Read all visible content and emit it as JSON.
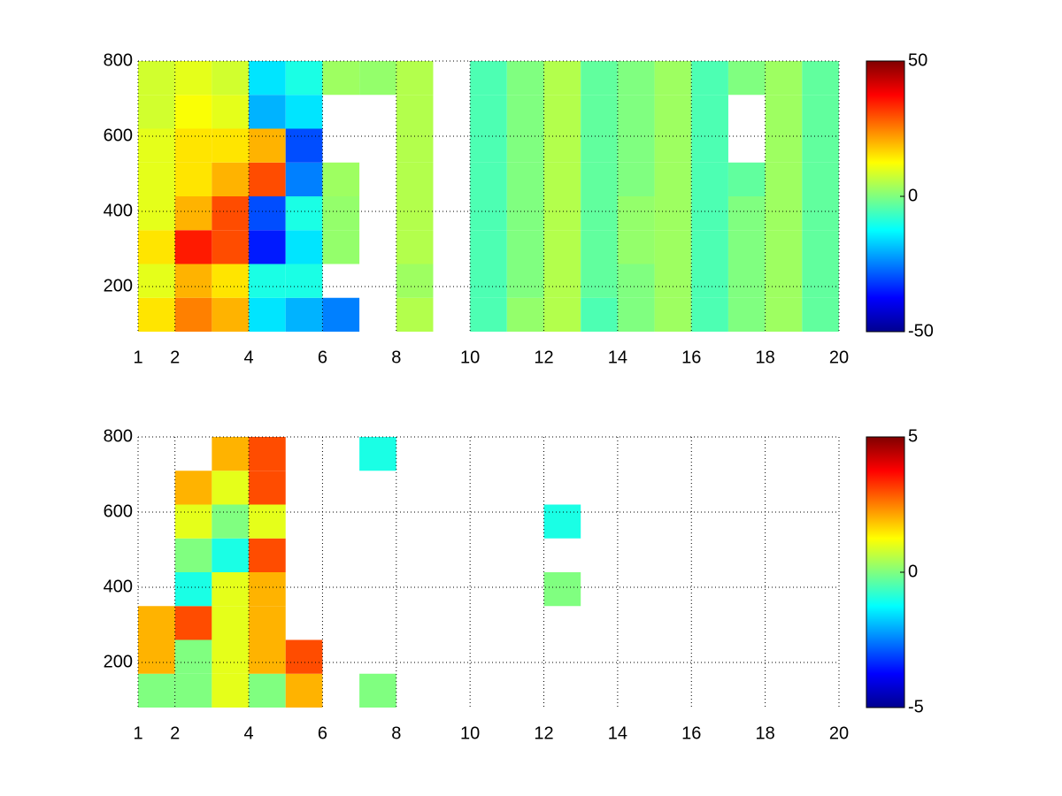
{
  "chart_data": [
    {
      "type": "heatmap",
      "colormap": "jet",
      "grid": true,
      "xlim": [
        1,
        20
      ],
      "ylim": [
        80,
        800
      ],
      "xticks": [
        1,
        2,
        4,
        6,
        8,
        10,
        12,
        14,
        16,
        18,
        20
      ],
      "yticks": [
        200,
        400,
        600,
        800
      ],
      "clim": [
        -50,
        50
      ],
      "cticks": [
        -50,
        0,
        50
      ],
      "xedges": [
        1,
        2,
        3,
        4,
        5,
        6,
        7,
        8,
        9,
        10,
        11,
        12,
        13,
        14,
        15,
        16,
        17,
        18,
        19,
        20
      ],
      "yedges": [
        80,
        170,
        260,
        350,
        440,
        530,
        620,
        710,
        800
      ],
      "values": [
        [
          15,
          25,
          20,
          -15,
          -20,
          -25,
          null,
          5,
          null,
          -5,
          2,
          5,
          -5,
          0,
          3,
          -5,
          0,
          3,
          -3
        ],
        [
          10,
          20,
          15,
          -10,
          -10,
          null,
          null,
          3,
          null,
          -5,
          0,
          5,
          -3,
          0,
          3,
          -5,
          0,
          3,
          -3
        ],
        [
          15,
          35,
          30,
          -35,
          -15,
          2,
          null,
          5,
          null,
          -5,
          0,
          5,
          -3,
          2,
          3,
          -5,
          0,
          3,
          -3
        ],
        [
          10,
          20,
          30,
          -30,
          -10,
          2,
          null,
          5,
          null,
          -5,
          0,
          5,
          -3,
          2,
          3,
          -5,
          0,
          3,
          -3
        ],
        [
          10,
          15,
          20,
          30,
          -25,
          3,
          null,
          5,
          null,
          -5,
          0,
          5,
          -3,
          0,
          3,
          -5,
          -3,
          3,
          -3
        ],
        [
          10,
          15,
          15,
          20,
          -30,
          null,
          null,
          5,
          null,
          -5,
          0,
          5,
          -3,
          0,
          3,
          -5,
          null,
          3,
          -3
        ],
        [
          8,
          12,
          10,
          -20,
          -15,
          null,
          null,
          5,
          null,
          -5,
          0,
          5,
          -3,
          0,
          3,
          -5,
          null,
          3,
          -3
        ],
        [
          8,
          10,
          8,
          -15,
          -10,
          3,
          2,
          5,
          null,
          -5,
          0,
          5,
          -3,
          0,
          3,
          -5,
          0,
          3,
          -3
        ]
      ]
    },
    {
      "type": "heatmap",
      "colormap": "jet",
      "grid": true,
      "xlim": [
        1,
        20
      ],
      "ylim": [
        80,
        800
      ],
      "xticks": [
        1,
        2,
        4,
        6,
        8,
        10,
        12,
        14,
        16,
        18,
        20
      ],
      "yticks": [
        200,
        400,
        600,
        800
      ],
      "clim": [
        -5,
        5
      ],
      "cticks": [
        -5,
        0,
        5
      ],
      "xedges": [
        1,
        2,
        3,
        4,
        5,
        6,
        7,
        8,
        9,
        10,
        11,
        12,
        13,
        14,
        15,
        16,
        17,
        18,
        19,
        20
      ],
      "yedges": [
        80,
        170,
        260,
        350,
        440,
        530,
        620,
        710,
        800
      ],
      "values": [
        [
          0,
          0,
          1,
          0,
          2,
          null,
          0,
          null,
          null,
          null,
          null,
          null,
          null,
          null,
          null,
          null,
          null,
          null,
          null
        ],
        [
          2,
          0,
          1,
          2,
          3,
          null,
          null,
          null,
          null,
          null,
          null,
          null,
          null,
          null,
          null,
          null,
          null,
          null,
          null
        ],
        [
          2,
          3,
          1,
          2,
          null,
          null,
          null,
          null,
          null,
          null,
          null,
          null,
          null,
          null,
          null,
          null,
          null,
          null,
          null
        ],
        [
          null,
          -1,
          1,
          2,
          null,
          null,
          null,
          null,
          null,
          null,
          null,
          0,
          null,
          null,
          null,
          null,
          null,
          null,
          null
        ],
        [
          null,
          0,
          -1,
          3,
          null,
          null,
          null,
          null,
          null,
          null,
          null,
          null,
          null,
          null,
          null,
          null,
          null,
          null,
          null
        ],
        [
          null,
          1,
          0,
          1,
          null,
          null,
          null,
          null,
          null,
          null,
          null,
          -1,
          null,
          null,
          null,
          null,
          null,
          null,
          null
        ],
        [
          null,
          2,
          1,
          3,
          null,
          null,
          null,
          null,
          null,
          null,
          null,
          null,
          null,
          null,
          null,
          null,
          null,
          null,
          null
        ],
        [
          null,
          null,
          2,
          3,
          null,
          null,
          -1,
          null,
          null,
          null,
          null,
          null,
          null,
          null,
          null,
          null,
          null,
          null,
          null
        ]
      ]
    }
  ]
}
